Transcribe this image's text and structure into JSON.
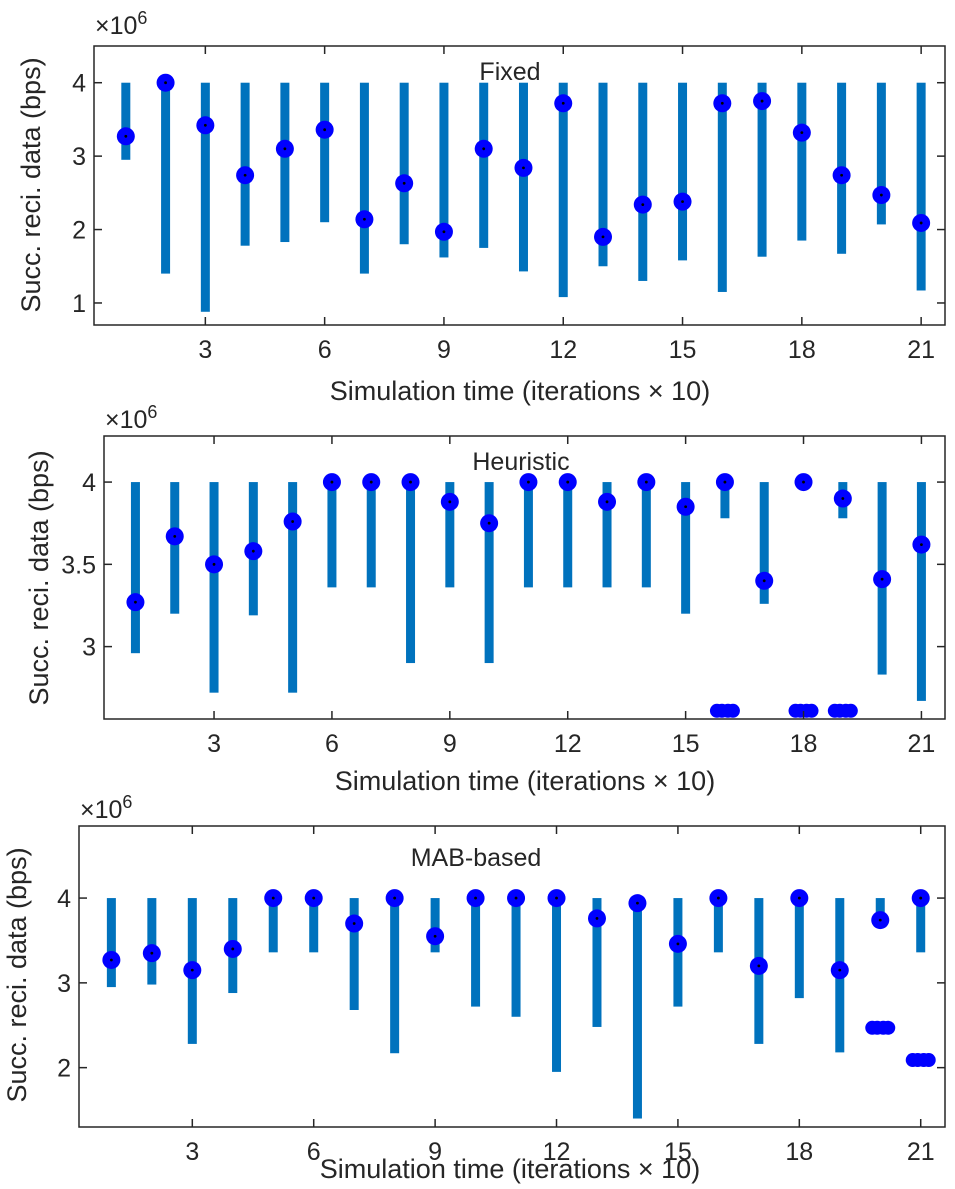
{
  "colors": {
    "whisker": "#0072BD",
    "marker": "#0000FF",
    "marker_dot": "#000000",
    "axis": "#262626",
    "background": "#ffffff"
  },
  "chart_data": [
    {
      "type": "box",
      "title": "Fixed",
      "xlabel": "Simulation time (iterations  × 10)",
      "ylabel": "Succ. reci. data (bps)",
      "exponent_label": "×10",
      "exponent_power": "6",
      "xlim": [
        0.2,
        21.6
      ],
      "ylim": [
        0.7,
        4.5
      ],
      "xticks": [
        3,
        6,
        9,
        12,
        15,
        18,
        21
      ],
      "xtick_labels": [
        "3",
        "6",
        "9",
        "12",
        "15",
        "18",
        "21"
      ],
      "yticks": [
        1,
        2,
        3,
        4
      ],
      "ytick_labels": [
        "1",
        "2",
        "3",
        "4"
      ],
      "boxes": [
        {
          "x": 1,
          "low": 2.95,
          "high": 4.0,
          "median": 3.27,
          "outliers": []
        },
        {
          "x": 2,
          "low": 1.4,
          "high": 4.0,
          "median": 4.0,
          "outliers": []
        },
        {
          "x": 3,
          "low": 0.88,
          "high": 4.0,
          "median": 3.42,
          "outliers": []
        },
        {
          "x": 4,
          "low": 1.78,
          "high": 4.0,
          "median": 2.74,
          "outliers": []
        },
        {
          "x": 5,
          "low": 1.83,
          "high": 4.0,
          "median": 3.1,
          "outliers": []
        },
        {
          "x": 6,
          "low": 2.1,
          "high": 4.0,
          "median": 3.36,
          "outliers": []
        },
        {
          "x": 7,
          "low": 1.4,
          "high": 4.0,
          "median": 2.14,
          "outliers": []
        },
        {
          "x": 8,
          "low": 1.8,
          "high": 4.0,
          "median": 2.63,
          "outliers": []
        },
        {
          "x": 9,
          "low": 1.62,
          "high": 4.0,
          "median": 1.97,
          "outliers": []
        },
        {
          "x": 10,
          "low": 1.75,
          "high": 4.0,
          "median": 3.1,
          "outliers": []
        },
        {
          "x": 11,
          "low": 1.43,
          "high": 4.0,
          "median": 2.84,
          "outliers": []
        },
        {
          "x": 12,
          "low": 1.08,
          "high": 4.0,
          "median": 3.72,
          "outliers": []
        },
        {
          "x": 13,
          "low": 1.5,
          "high": 4.0,
          "median": 1.9,
          "outliers": []
        },
        {
          "x": 14,
          "low": 1.3,
          "high": 4.0,
          "median": 2.34,
          "outliers": []
        },
        {
          "x": 15,
          "low": 1.58,
          "high": 4.0,
          "median": 2.38,
          "outliers": []
        },
        {
          "x": 16,
          "low": 1.15,
          "high": 4.0,
          "median": 3.72,
          "outliers": []
        },
        {
          "x": 17,
          "low": 1.63,
          "high": 4.0,
          "median": 3.75,
          "outliers": []
        },
        {
          "x": 18,
          "low": 1.85,
          "high": 4.0,
          "median": 3.32,
          "outliers": []
        },
        {
          "x": 19,
          "low": 1.67,
          "high": 4.0,
          "median": 2.74,
          "outliers": []
        },
        {
          "x": 20,
          "low": 2.07,
          "high": 4.0,
          "median": 2.47,
          "outliers": []
        },
        {
          "x": 21,
          "low": 1.17,
          "high": 4.0,
          "median": 2.09,
          "outliers": []
        }
      ]
    },
    {
      "type": "box",
      "title": "Heuristic",
      "xlabel": "Simulation time (iterations  × 10)",
      "ylabel": "Succ. reci. data (bps)",
      "exponent_label": "×10",
      "exponent_power": "6",
      "xlim": [
        0.2,
        21.6
      ],
      "ylim": [
        2.56,
        4.28
      ],
      "xticks": [
        3,
        6,
        9,
        12,
        15,
        18,
        21
      ],
      "xtick_labels": [
        "3",
        "6",
        "9",
        "12",
        "15",
        "18",
        "21"
      ],
      "yticks": [
        3,
        3.5,
        4
      ],
      "ytick_labels": [
        "3",
        "3.5",
        "4"
      ],
      "boxes": [
        {
          "x": 1,
          "low": 2.96,
          "high": 4.0,
          "median": 3.27,
          "outliers": []
        },
        {
          "x": 2,
          "low": 3.2,
          "high": 4.0,
          "median": 3.67,
          "outliers": []
        },
        {
          "x": 3,
          "low": 2.72,
          "high": 4.0,
          "median": 3.5,
          "outliers": []
        },
        {
          "x": 4,
          "low": 3.19,
          "high": 4.0,
          "median": 3.58,
          "outliers": []
        },
        {
          "x": 5,
          "low": 2.72,
          "high": 4.0,
          "median": 3.76,
          "outliers": []
        },
        {
          "x": 6,
          "low": 3.36,
          "high": 4.0,
          "median": 4.0,
          "outliers": []
        },
        {
          "x": 7,
          "low": 3.36,
          "high": 4.0,
          "median": 4.0,
          "outliers": []
        },
        {
          "x": 8,
          "low": 2.9,
          "high": 4.0,
          "median": 4.0,
          "outliers": []
        },
        {
          "x": 9,
          "low": 3.36,
          "high": 4.0,
          "median": 3.88,
          "outliers": []
        },
        {
          "x": 10,
          "low": 2.9,
          "high": 4.0,
          "median": 3.75,
          "outliers": []
        },
        {
          "x": 11,
          "low": 3.36,
          "high": 4.0,
          "median": 4.0,
          "outliers": []
        },
        {
          "x": 12,
          "low": 3.36,
          "high": 4.0,
          "median": 4.0,
          "outliers": []
        },
        {
          "x": 13,
          "low": 3.36,
          "high": 4.0,
          "median": 3.88,
          "outliers": []
        },
        {
          "x": 14,
          "low": 3.36,
          "high": 4.0,
          "median": 4.0,
          "outliers": []
        },
        {
          "x": 15,
          "low": 3.2,
          "high": 4.0,
          "median": 3.85,
          "outliers": []
        },
        {
          "x": 16,
          "low": 3.78,
          "high": 4.0,
          "median": 4.0,
          "outliers": [
            2.61
          ]
        },
        {
          "x": 17,
          "low": 3.26,
          "high": 4.0,
          "median": 3.4,
          "outliers": []
        },
        {
          "x": 18,
          "low": 4.0,
          "high": 4.0,
          "median": 4.0,
          "outliers": [
            2.61
          ]
        },
        {
          "x": 19,
          "low": 3.78,
          "high": 4.0,
          "median": 3.9,
          "outliers": [
            2.61
          ]
        },
        {
          "x": 20,
          "low": 2.83,
          "high": 4.0,
          "median": 3.41,
          "outliers": []
        },
        {
          "x": 21,
          "low": 2.67,
          "high": 4.0,
          "median": 3.62,
          "outliers": []
        }
      ]
    },
    {
      "type": "box",
      "title": "MAB-based",
      "xlabel": "Simulation time (iterations  × 10)",
      "ylabel": "Succ. reci. data (bps)",
      "exponent_label": "×10",
      "exponent_power": "6",
      "xlim": [
        0.2,
        21.6
      ],
      "ylim": [
        1.3,
        4.85
      ],
      "xticks": [
        3,
        6,
        9,
        12,
        15,
        18,
        21
      ],
      "xtick_labels": [
        "3",
        "6",
        "9",
        "12",
        "15",
        "18",
        "21"
      ],
      "yticks": [
        2,
        3,
        4
      ],
      "ytick_labels": [
        "2",
        "3",
        "4"
      ],
      "boxes": [
        {
          "x": 1,
          "low": 2.95,
          "high": 4.0,
          "median": 3.27,
          "outliers": []
        },
        {
          "x": 2,
          "low": 2.98,
          "high": 4.0,
          "median": 3.35,
          "outliers": []
        },
        {
          "x": 3,
          "low": 2.28,
          "high": 4.0,
          "median": 3.15,
          "outliers": []
        },
        {
          "x": 4,
          "low": 2.88,
          "high": 4.0,
          "median": 3.4,
          "outliers": []
        },
        {
          "x": 5,
          "low": 3.36,
          "high": 4.0,
          "median": 4.0,
          "outliers": []
        },
        {
          "x": 6,
          "low": 3.36,
          "high": 4.0,
          "median": 4.0,
          "outliers": []
        },
        {
          "x": 7,
          "low": 2.68,
          "high": 4.0,
          "median": 3.7,
          "outliers": []
        },
        {
          "x": 8,
          "low": 2.17,
          "high": 4.0,
          "median": 4.0,
          "outliers": []
        },
        {
          "x": 9,
          "low": 3.36,
          "high": 4.0,
          "median": 3.55,
          "outliers": []
        },
        {
          "x": 10,
          "low": 2.72,
          "high": 4.0,
          "median": 4.0,
          "outliers": []
        },
        {
          "x": 11,
          "low": 2.6,
          "high": 4.0,
          "median": 4.0,
          "outliers": []
        },
        {
          "x": 12,
          "low": 1.95,
          "high": 4.0,
          "median": 4.0,
          "outliers": []
        },
        {
          "x": 13,
          "low": 2.48,
          "high": 4.0,
          "median": 3.76,
          "outliers": []
        },
        {
          "x": 14,
          "low": 1.4,
          "high": 4.0,
          "median": 3.94,
          "outliers": []
        },
        {
          "x": 15,
          "low": 2.72,
          "high": 4.0,
          "median": 3.46,
          "outliers": []
        },
        {
          "x": 16,
          "low": 3.36,
          "high": 4.0,
          "median": 4.0,
          "outliers": []
        },
        {
          "x": 17,
          "low": 2.28,
          "high": 4.0,
          "median": 3.2,
          "outliers": []
        },
        {
          "x": 18,
          "low": 2.82,
          "high": 4.0,
          "median": 4.0,
          "outliers": []
        },
        {
          "x": 19,
          "low": 2.18,
          "high": 4.0,
          "median": 3.15,
          "outliers": []
        },
        {
          "x": 20,
          "low": 3.74,
          "high": 4.0,
          "median": 3.74,
          "outliers": [
            2.47
          ]
        },
        {
          "x": 21,
          "low": 3.36,
          "high": 4.0,
          "median": 4.0,
          "outliers": [
            2.09
          ]
        }
      ]
    }
  ]
}
